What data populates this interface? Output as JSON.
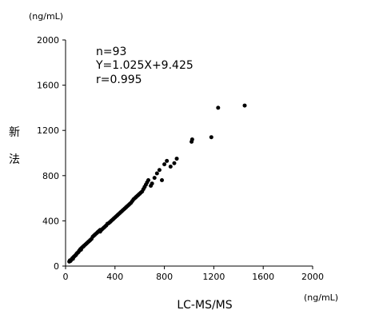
{
  "chart_data": {
    "type": "scatter",
    "title": "",
    "xlabel": "LC-MS/MS",
    "ylabel_chars": [
      "新",
      "法"
    ],
    "x_unit": "(ng/mL)",
    "y_unit": "(ng/mL)",
    "xlim": [
      0,
      2000
    ],
    "ylim": [
      0,
      2000
    ],
    "x_ticks": [
      0,
      400,
      800,
      1200,
      1600,
      2000
    ],
    "y_ticks": [
      0,
      400,
      800,
      1200,
      1600,
      2000
    ],
    "grid": false,
    "annotations": [
      "n=93",
      "Y=1.025X+9.425",
      "r=0.995"
    ],
    "series": [
      {
        "points": [
          [
            30,
            40
          ],
          [
            35,
            50
          ],
          [
            40,
            45
          ],
          [
            45,
            55
          ],
          [
            50,
            60
          ],
          [
            55,
            70
          ],
          [
            60,
            65
          ],
          [
            65,
            80
          ],
          [
            70,
            85
          ],
          [
            75,
            90
          ],
          [
            80,
            95
          ],
          [
            85,
            100
          ],
          [
            90,
            110
          ],
          [
            95,
            115
          ],
          [
            100,
            120
          ],
          [
            105,
            125
          ],
          [
            110,
            135
          ],
          [
            115,
            140
          ],
          [
            120,
            150
          ],
          [
            125,
            145
          ],
          [
            130,
            160
          ],
          [
            140,
            170
          ],
          [
            145,
            175
          ],
          [
            150,
            180
          ],
          [
            160,
            190
          ],
          [
            170,
            200
          ],
          [
            180,
            210
          ],
          [
            190,
            220
          ],
          [
            200,
            230
          ],
          [
            210,
            240
          ],
          [
            220,
            260
          ],
          [
            230,
            270
          ],
          [
            240,
            280
          ],
          [
            250,
            290
          ],
          [
            260,
            300
          ],
          [
            270,
            310
          ],
          [
            280,
            305
          ],
          [
            290,
            320
          ],
          [
            300,
            330
          ],
          [
            310,
            340
          ],
          [
            320,
            350
          ],
          [
            330,
            360
          ],
          [
            340,
            375
          ],
          [
            350,
            380
          ],
          [
            360,
            390
          ],
          [
            370,
            400
          ],
          [
            380,
            410
          ],
          [
            390,
            420
          ],
          [
            400,
            430
          ],
          [
            410,
            440
          ],
          [
            420,
            450
          ],
          [
            430,
            460
          ],
          [
            440,
            470
          ],
          [
            450,
            480
          ],
          [
            460,
            490
          ],
          [
            470,
            500
          ],
          [
            480,
            510
          ],
          [
            490,
            520
          ],
          [
            500,
            530
          ],
          [
            510,
            540
          ],
          [
            520,
            550
          ],
          [
            530,
            560
          ],
          [
            540,
            575
          ],
          [
            550,
            590
          ],
          [
            560,
            600
          ],
          [
            570,
            610
          ],
          [
            580,
            620
          ],
          [
            590,
            630
          ],
          [
            600,
            640
          ],
          [
            610,
            650
          ],
          [
            620,
            660
          ],
          [
            630,
            680
          ],
          [
            640,
            700
          ],
          [
            650,
            720
          ],
          [
            660,
            740
          ],
          [
            670,
            760
          ],
          [
            690,
            710
          ],
          [
            700,
            730
          ],
          [
            720,
            780
          ],
          [
            740,
            820
          ],
          [
            760,
            850
          ],
          [
            780,
            760
          ],
          [
            800,
            900
          ],
          [
            820,
            930
          ],
          [
            850,
            880
          ],
          [
            880,
            910
          ],
          [
            900,
            950
          ],
          [
            1020,
            1100
          ],
          [
            1025,
            1120
          ],
          [
            1180,
            1140
          ],
          [
            1235,
            1400
          ],
          [
            1450,
            1420
          ],
          [
            280,
            320
          ]
        ]
      }
    ]
  }
}
